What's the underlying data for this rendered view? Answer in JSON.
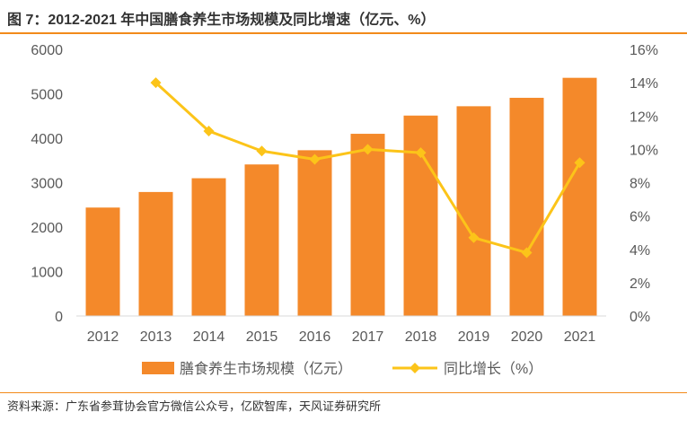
{
  "title": "图 7：2012-2021 年中国膳食养生市场规模及同比增速（亿元、%）",
  "source": "资料来源：广东省参茸协会官方微信公众号，亿欧智库，天风证券研究所",
  "colors": {
    "bar": "#f4892a",
    "line": "#fcc419",
    "accent": "#f28a1a",
    "axis": "#d9d9d9",
    "text": "#595959"
  },
  "chart_data": {
    "type": "bar",
    "categories": [
      "2012",
      "2013",
      "2014",
      "2015",
      "2016",
      "2017",
      "2018",
      "2019",
      "2020",
      "2021"
    ],
    "series": [
      {
        "name": "膳食养生市场规模（亿元）",
        "type": "bar",
        "axis": "left",
        "values": [
          2440,
          2790,
          3100,
          3410,
          3730,
          4100,
          4510,
          4720,
          4910,
          5360
        ]
      },
      {
        "name": "同比增长（%）",
        "type": "line",
        "axis": "right",
        "values": [
          null,
          14.0,
          11.1,
          9.9,
          9.4,
          10.0,
          9.8,
          4.7,
          3.8,
          9.2
        ]
      }
    ],
    "y_left": {
      "min": 0,
      "max": 6000,
      "step": 1000,
      "tick_labels": [
        "0",
        "1000",
        "2000",
        "3000",
        "4000",
        "5000",
        "6000"
      ]
    },
    "y_right": {
      "min": 0,
      "max": 16,
      "step": 2,
      "tick_labels": [
        "0%",
        "2%",
        "4%",
        "6%",
        "8%",
        "10%",
        "12%",
        "14%",
        "16%"
      ]
    },
    "legend": [
      "膳食养生市场规模（亿元）",
      "同比增长（%）"
    ],
    "legend_position": "bottom",
    "grid": false
  }
}
